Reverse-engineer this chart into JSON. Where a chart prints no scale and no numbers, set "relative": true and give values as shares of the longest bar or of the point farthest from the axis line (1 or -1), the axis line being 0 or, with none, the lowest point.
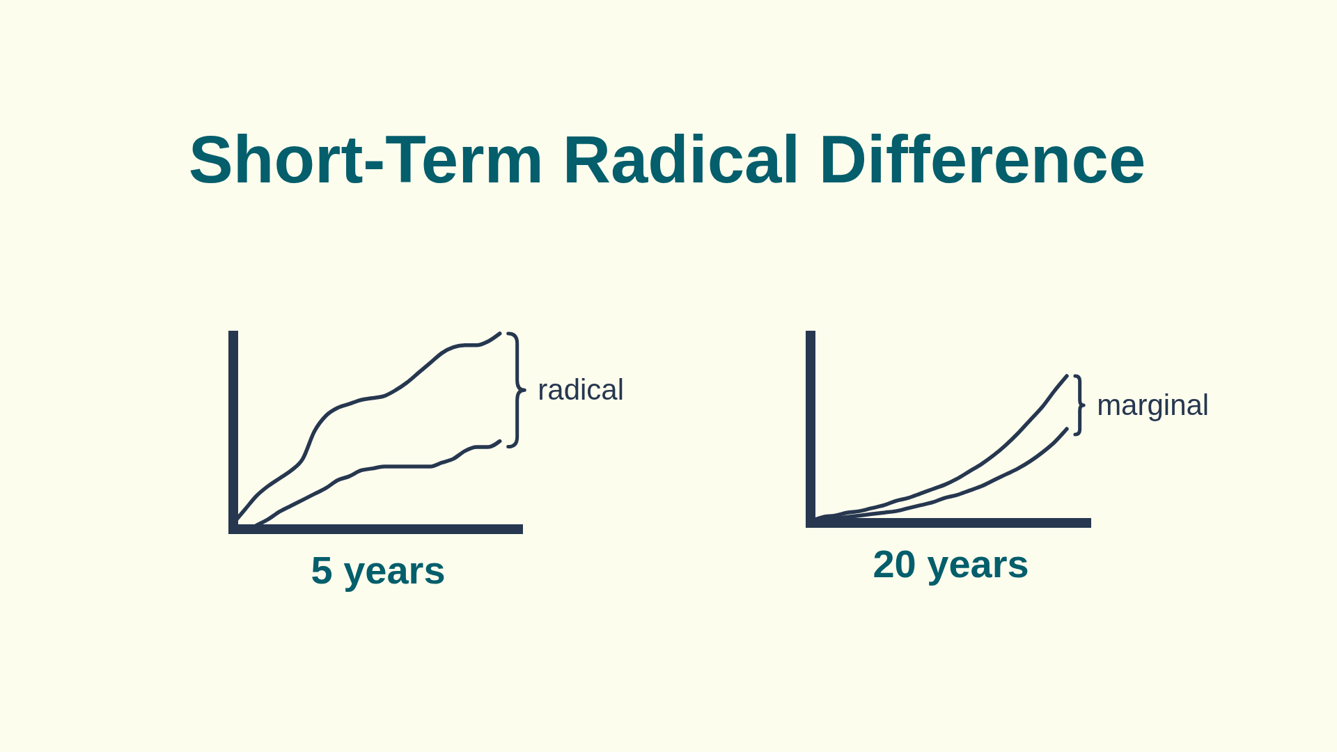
{
  "chart_data": [
    {
      "type": "line",
      "title": "Short-Term Radical Difference",
      "xlabel": "5 years",
      "relative": true,
      "line_style": "solid",
      "annotations": [
        "radical"
      ],
      "categories": [
        null,
        null,
        null,
        null,
        null,
        null,
        null,
        null,
        null,
        null,
        null,
        null,
        null,
        null,
        null,
        null,
        null,
        null,
        null,
        null,
        null,
        null,
        null,
        null,
        null,
        null
      ],
      "series": [
        {
          "color": "#26374f",
          "values": [
            0.03,
            0.1,
            0.17,
            0.22,
            0.26,
            0.3,
            0.36,
            0.5,
            0.58,
            0.62,
            0.64,
            0.66,
            0.67,
            0.68,
            0.71,
            0.75,
            0.8,
            0.85,
            0.9,
            0.93,
            0.94,
            0.94,
            0.96,
            1,
            null,
            null
          ]
        },
        {
          "color": "#26374f",
          "values": [
            null,
            null,
            0.02,
            0.05,
            0.09,
            0.12,
            0.15,
            0.18,
            0.21,
            0.25,
            0.27,
            0.3,
            0.31,
            0.32,
            0.32,
            0.32,
            0.32,
            0.32,
            0.34,
            0.36,
            0.4,
            0.42,
            0.42,
            0.45,
            null,
            null
          ]
        }
      ]
    },
    {
      "type": "line",
      "xlabel": "20 years",
      "relative": true,
      "line_style": "solid",
      "annotations": [
        "marginal"
      ],
      "categories": [
        null,
        null,
        null,
        null,
        null,
        null,
        null,
        null,
        null,
        null,
        null,
        null,
        null,
        null,
        null,
        null,
        null,
        null,
        null,
        null,
        null,
        null,
        null,
        null
      ],
      "series": [
        {
          "color": "#26374f",
          "values": [
            0.01,
            0.04,
            0.05,
            0.07,
            0.08,
            0.1,
            0.12,
            0.15,
            0.17,
            0.2,
            0.23,
            0.26,
            0.3,
            0.35,
            0.4,
            0.46,
            0.53,
            0.61,
            0.7,
            0.79,
            0.9,
            1,
            null,
            null
          ]
        },
        {
          "color": "#26374f",
          "values": [
            0.01,
            0.02,
            0.03,
            0.04,
            0.05,
            0.06,
            0.07,
            0.08,
            0.1,
            0.12,
            0.14,
            0.17,
            0.19,
            0.22,
            0.25,
            0.29,
            0.33,
            0.37,
            0.42,
            0.48,
            0.55,
            0.64,
            null,
            null
          ]
        }
      ]
    }
  ]
}
